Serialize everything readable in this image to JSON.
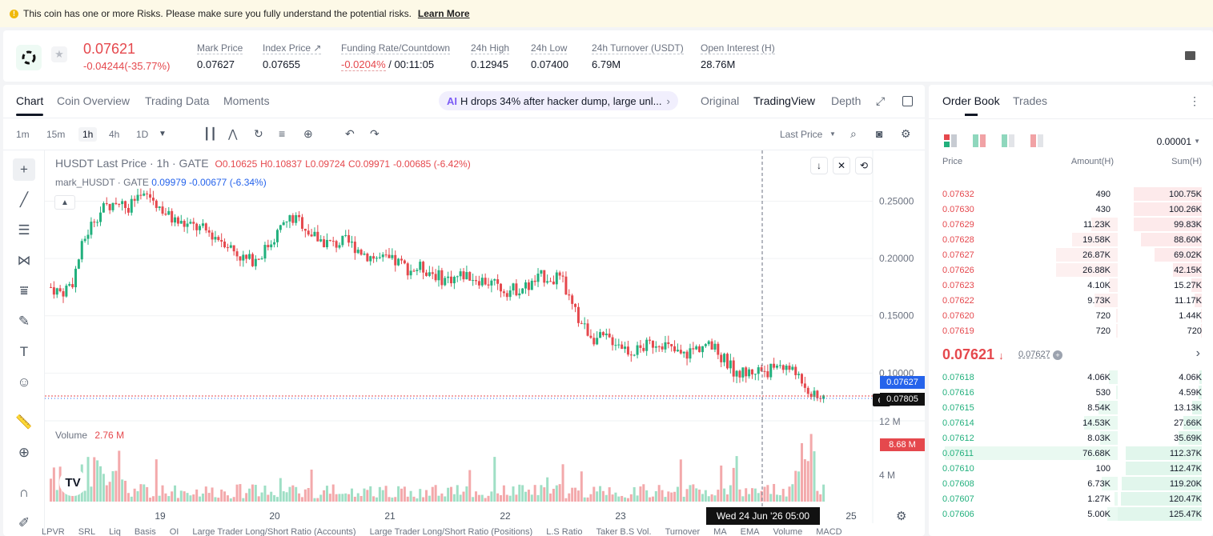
{
  "risk_banner": {
    "text": "This coin has one or more Risks. Please make sure you fully understand the potential risks.",
    "link": "Learn More"
  },
  "ticker": {
    "last_price": "0.07621",
    "change": "-0.04244(-35.77%)",
    "stats": [
      {
        "label": "Mark Price",
        "value": "0.07627"
      },
      {
        "label": "Index Price ↗",
        "value": "0.07655"
      },
      {
        "label": "Funding Rate/Countdown",
        "value_red": "-0.0204%",
        "value": " / 00:11:05"
      },
      {
        "label": "24h High",
        "value": "0.12945"
      },
      {
        "label": "24h Low",
        "value": "0.07400"
      },
      {
        "label": "24h Turnover (USDT)",
        "value": "6.79M"
      },
      {
        "label": "Open Interest (H)",
        "value": "28.76M"
      }
    ]
  },
  "chart_tabs": [
    "Chart",
    "Coin Overview",
    "Trading Data",
    "Moments"
  ],
  "news": {
    "badge": "AI",
    "text": "H drops 34% after hacker dump, large unl..."
  },
  "view_tabs": [
    "Original",
    "TradingView",
    "Depth"
  ],
  "timeframes": [
    "1m",
    "15m",
    "1h",
    "4h",
    "1D"
  ],
  "price_source": "Last Price",
  "legend": {
    "title": "HUSDT Last Price · 1h · GATE",
    "o": "O0.10625",
    "h": "H0.10837",
    "l": "L0.09724",
    "c": "C0.09971",
    "chg": "-0.00685 (-6.42%)",
    "mark_label": "mark_HUSDT · GATE",
    "mark_val": "0.09979",
    "mark_chg": "-0.00677 (-6.34%)",
    "volume_label": "Volume",
    "volume_val": "2.76 M"
  },
  "price_axis": [
    "0.25000",
    "0.20000",
    "0.15000",
    "0.10000"
  ],
  "price_markers": {
    "mark": "0.07627",
    "last": "0.07805"
  },
  "volume_axis": [
    "12 M",
    "4 M"
  ],
  "volume_marker": "8.68 M",
  "time_axis": [
    "19",
    "20",
    "21",
    "22",
    "23",
    "25"
  ],
  "crosshair_time": "Wed 24 Jun '26   05:00",
  "bottom_indicators": [
    "LPVR",
    "SRL",
    "Liq",
    "Basis",
    "OI",
    "Large Trader Long/Short Ratio (Accounts)",
    "Large Trader Long/Short Ratio (Positions)",
    "L.S Ratio",
    "Taker B.S Vol.",
    "Turnover",
    "MA",
    "EMA",
    "Volume",
    "MACD"
  ],
  "chart_data": {
    "type": "candlestick",
    "series_name": "HUSDT Last Price",
    "x_ticks": [
      "19",
      "20",
      "21",
      "22",
      "23",
      "25"
    ],
    "ylim": [
      0.07,
      0.26
    ],
    "price_path": [
      0.175,
      0.17,
      0.18,
      0.215,
      0.235,
      0.245,
      0.25,
      0.245,
      0.25,
      0.255,
      0.245,
      0.235,
      0.23,
      0.228,
      0.225,
      0.22,
      0.215,
      0.205,
      0.198,
      0.2,
      0.212,
      0.225,
      0.235,
      0.232,
      0.22,
      0.215,
      0.212,
      0.215,
      0.21,
      0.203,
      0.2,
      0.198,
      0.196,
      0.19,
      0.192,
      0.188,
      0.182,
      0.183,
      0.186,
      0.183,
      0.18,
      0.176,
      0.172,
      0.174,
      0.176,
      0.184,
      0.184,
      0.18,
      0.155,
      0.14,
      0.13,
      0.13,
      0.128,
      0.12,
      0.12,
      0.125,
      0.128,
      0.12,
      0.115,
      0.12,
      0.125,
      0.12,
      0.11,
      0.1,
      0.1,
      0.103,
      0.102,
      0.108,
      0.103,
      0.095,
      0.08,
      0.076
    ]
  },
  "order_book": {
    "tabs": [
      "Order Book",
      "Trades"
    ],
    "precision": "0.00001",
    "headers": [
      "Price",
      "Amount(H)",
      "Sum(H)"
    ],
    "asks": [
      {
        "price": "0.07632",
        "amount": "490",
        "sum": "100.75K",
        "depth": 0.81,
        "amt": 0
      },
      {
        "price": "0.07630",
        "amount": "430",
        "sum": "100.26K",
        "depth": 0.81,
        "amt": 0
      },
      {
        "price": "0.07629",
        "amount": "11.23K",
        "sum": "99.83K",
        "depth": 0.81,
        "amt": 0.15
      },
      {
        "price": "0.07628",
        "amount": "19.58K",
        "sum": "88.60K",
        "depth": 0.72,
        "amt": 0.26
      },
      {
        "price": "0.07627",
        "amount": "26.87K",
        "sum": "69.02K",
        "depth": 0.56,
        "amt": 0.35
      },
      {
        "price": "0.07626",
        "amount": "26.88K",
        "sum": "42.15K",
        "depth": 0.34,
        "amt": 0.35
      },
      {
        "price": "0.07623",
        "amount": "4.10K",
        "sum": "15.27K",
        "depth": 0.12,
        "amt": 0.05
      },
      {
        "price": "0.07622",
        "amount": "9.73K",
        "sum": "11.17K",
        "depth": 0.09,
        "amt": 0.13
      },
      {
        "price": "0.07620",
        "amount": "720",
        "sum": "1.44K",
        "depth": 0.01,
        "amt": 0.01
      },
      {
        "price": "0.07619",
        "amount": "720",
        "sum": "720",
        "depth": 0.006,
        "amt": 0.01
      }
    ],
    "mid_price": "0.07621",
    "mid_mark": "0.07627",
    "bids": [
      {
        "price": "0.07618",
        "amount": "4.06K",
        "sum": "4.06K",
        "depth": 0.03,
        "amt": 0.05
      },
      {
        "price": "0.07616",
        "amount": "530",
        "sum": "4.59K",
        "depth": 0.04,
        "amt": 0.01
      },
      {
        "price": "0.07615",
        "amount": "8.54K",
        "sum": "13.13K",
        "depth": 0.11,
        "amt": 0.11
      },
      {
        "price": "0.07614",
        "amount": "14.53K",
        "sum": "27.66K",
        "depth": 0.22,
        "amt": 0.19
      },
      {
        "price": "0.07612",
        "amount": "8.03K",
        "sum": "35.69K",
        "depth": 0.28,
        "amt": 0.1
      },
      {
        "price": "0.07611",
        "amount": "76.68K",
        "sum": "112.37K",
        "depth": 0.9,
        "amt": 0.98
      },
      {
        "price": "0.07610",
        "amount": "100",
        "sum": "112.47K",
        "depth": 0.9,
        "amt": 0
      },
      {
        "price": "0.07608",
        "amount": "6.73K",
        "sum": "119.20K",
        "depth": 0.95,
        "amt": 0.09
      },
      {
        "price": "0.07607",
        "amount": "1.27K",
        "sum": "120.47K",
        "depth": 0.96,
        "amt": 0.02
      },
      {
        "price": "0.07606",
        "amount": "5.00K",
        "sum": "125.47K",
        "depth": 1.0,
        "amt": 0.06
      }
    ]
  }
}
